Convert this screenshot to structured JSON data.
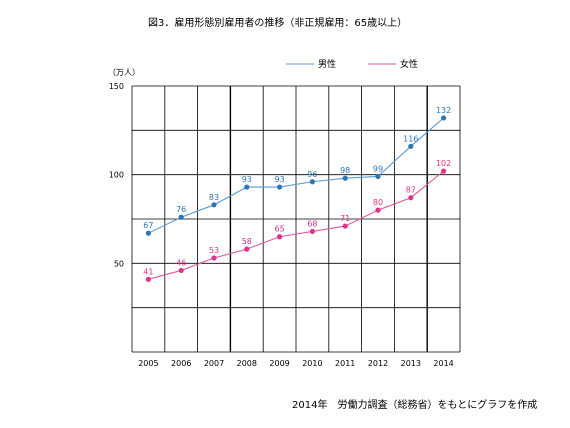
{
  "chart_data": {
    "type": "line",
    "title": "図3．雇用形態別雇用者の推移（非正規雇用：65歳以上）",
    "unit_label": "（万人）",
    "source_note": "2014年　労働力調査（総務省）をもとにグラフを作成",
    "x": [
      "2005",
      "2006",
      "2007",
      "2008",
      "2009",
      "2010",
      "2011",
      "2012",
      "2013",
      "2014"
    ],
    "ylim": [
      0,
      150
    ],
    "yticks": [
      "150",
      "100",
      "50"
    ],
    "ytick_values": [
      150,
      100,
      50
    ],
    "grid": true,
    "legend_position": "top-right",
    "series": [
      {
        "name": "男性",
        "color": "#5b9bd5",
        "marker_color": "#2e75b6",
        "label_color": "#2e75b6",
        "values": [
          67,
          76,
          83,
          93,
          93,
          96,
          98,
          99,
          116,
          132
        ]
      },
      {
        "name": "女性",
        "color": "#e05aa0",
        "marker_color": "#e0308a",
        "label_color": "#e0308a",
        "values": [
          41,
          46,
          53,
          58,
          65,
          68,
          71,
          80,
          87,
          102
        ]
      }
    ]
  }
}
